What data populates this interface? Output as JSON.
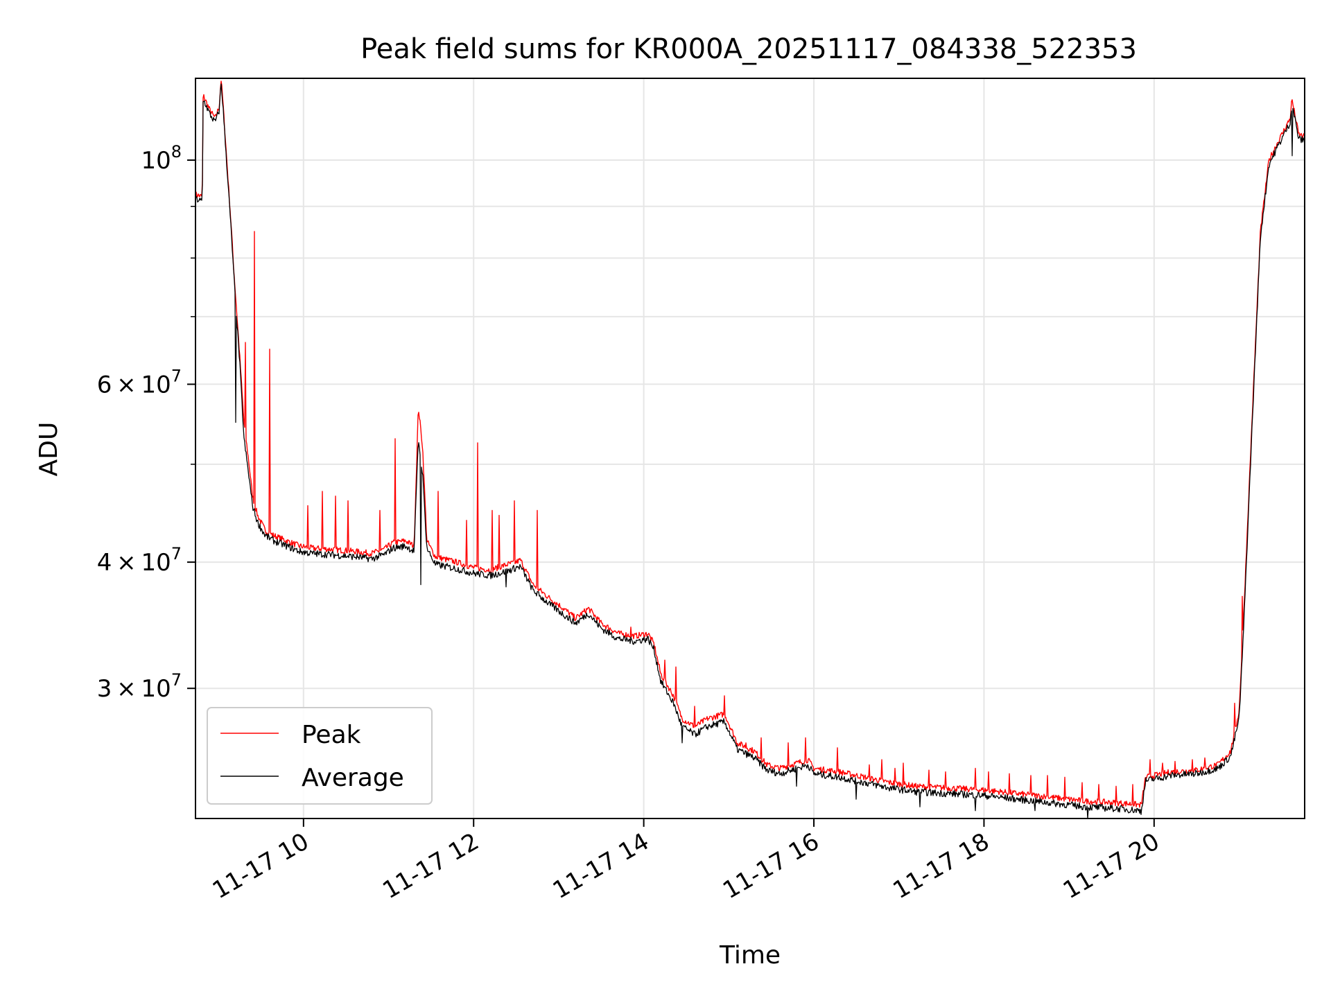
{
  "chart_data": {
    "type": "line",
    "title": "Peak field sums for KR000A_20251117_084338_522353",
    "xlabel": "Time",
    "ylabel": "ADU",
    "yscale": "log",
    "xlim": [
      8.73,
      21.77
    ],
    "ylim": [
      22300000,
      120500000
    ],
    "x_ticks": [
      {
        "x": 10,
        "label": "11-17 10"
      },
      {
        "x": 12,
        "label": "11-17 12"
      },
      {
        "x": 14,
        "label": "11-17 14"
      },
      {
        "x": 16,
        "label": "11-17 16"
      },
      {
        "x": 18,
        "label": "11-17 18"
      },
      {
        "x": 20,
        "label": "11-17 20"
      }
    ],
    "y_major_ticks": [
      {
        "value": 30000000,
        "base": "3",
        "exponent": "7"
      },
      {
        "value": 40000000,
        "base": "4",
        "exponent": "7"
      },
      {
        "value": 60000000,
        "base": "6",
        "exponent": "7"
      },
      {
        "value": 100000000,
        "base": "10",
        "exponent": "8"
      }
    ],
    "y_major_mult": "×",
    "y_minor_ticks": [
      50000000,
      70000000,
      80000000,
      90000000
    ],
    "grid": true,
    "legend_position": "lower-left",
    "series": [
      {
        "name": "Peak",
        "color": "#ff0000",
        "x": [
          8.73,
          8.81,
          8.82,
          8.9,
          8.96,
          9.01,
          9.03,
          9.05,
          9.15,
          9.18,
          9.25,
          9.3,
          9.36,
          9.4,
          9.46,
          9.55,
          9.65,
          9.8,
          9.95,
          10.1,
          10.3,
          10.6,
          10.8,
          10.95,
          11.05,
          11.2,
          11.3,
          11.35,
          11.4,
          11.45,
          11.55,
          11.8,
          12.0,
          12.2,
          12.4,
          12.5,
          12.55,
          12.7,
          12.9,
          13.0,
          13.2,
          13.35,
          13.5,
          13.7,
          13.9,
          14.05,
          14.12,
          14.2,
          14.35,
          14.45,
          14.6,
          14.75,
          14.95,
          15.1,
          15.3,
          15.45,
          15.6,
          15.8,
          15.93,
          16.0,
          16.3,
          16.6,
          16.9,
          17.2,
          17.6,
          18.0,
          18.4,
          18.8,
          19.2,
          19.6,
          19.85,
          19.9,
          20.2,
          20.5,
          20.75,
          20.9,
          21.0,
          21.05,
          21.15,
          21.25,
          21.35,
          21.45,
          21.6,
          21.62,
          21.7,
          21.77
        ],
        "y": [
          92500000,
          92000000,
          116000000,
          112000000,
          110000000,
          113000000,
          120500000,
          115000000,
          86000000,
          78000000,
          64000000,
          55000000,
          50000000,
          46500000,
          44500000,
          43000000,
          42500000,
          42000000,
          41500000,
          41300000,
          41200000,
          41000000,
          40800000,
          41200000,
          41800000,
          42000000,
          41500000,
          57000000,
          52000000,
          42000000,
          40500000,
          40000000,
          39500000,
          39300000,
          39800000,
          40000000,
          40200000,
          38000000,
          36800000,
          36300000,
          35200000,
          36000000,
          34800000,
          34000000,
          33800000,
          34000000,
          33200000,
          31000000,
          29500000,
          28000000,
          27500000,
          28000000,
          28300000,
          26500000,
          26000000,
          25200000,
          25000000,
          25300000,
          25500000,
          25000000,
          24800000,
          24500000,
          24200000,
          24000000,
          23900000,
          23800000,
          23600000,
          23400000,
          23200000,
          23100000,
          23000000,
          24500000,
          24800000,
          24900000,
          25200000,
          26000000,
          28500000,
          35000000,
          55000000,
          85000000,
          100000000,
          104000000,
          110000000,
          115000000,
          106000000,
          105500000
        ]
      },
      {
        "name": "Average",
        "color": "#000000",
        "x": [
          8.73,
          8.81,
          8.82,
          8.9,
          8.96,
          9.01,
          9.03,
          9.05,
          9.15,
          9.18,
          9.25,
          9.3,
          9.36,
          9.4,
          9.46,
          9.55,
          9.65,
          9.8,
          9.95,
          10.1,
          10.3,
          10.6,
          10.8,
          10.95,
          11.05,
          11.2,
          11.3,
          11.35,
          11.4,
          11.45,
          11.55,
          11.8,
          12.0,
          12.2,
          12.4,
          12.5,
          12.55,
          12.7,
          12.9,
          13.0,
          13.2,
          13.35,
          13.5,
          13.7,
          13.9,
          14.05,
          14.12,
          14.2,
          14.35,
          14.45,
          14.6,
          14.75,
          14.95,
          15.1,
          15.3,
          15.45,
          15.6,
          15.8,
          15.93,
          16.0,
          16.3,
          16.6,
          16.9,
          17.2,
          17.6,
          18.0,
          18.4,
          18.8,
          19.2,
          19.6,
          19.85,
          19.9,
          20.2,
          20.5,
          20.75,
          20.9,
          21.0,
          21.05,
          21.15,
          21.25,
          21.35,
          21.45,
          21.6,
          21.62,
          21.7,
          21.77
        ],
        "y": [
          91500000,
          91000000,
          115000000,
          111000000,
          109000000,
          112000000,
          119500000,
          114000000,
          85000000,
          77000000,
          63000000,
          53000000,
          48500000,
          45500000,
          43800000,
          42500000,
          42000000,
          41500000,
          41000000,
          40800000,
          40700000,
          40500000,
          40300000,
          40700000,
          41300000,
          41500000,
          41000000,
          53000000,
          49000000,
          41300000,
          39800000,
          39400000,
          39000000,
          38800000,
          39200000,
          39500000,
          39600000,
          37500000,
          36300000,
          35800000,
          34800000,
          35600000,
          34400000,
          33600000,
          33400000,
          33600000,
          32800000,
          30500000,
          29000000,
          27500000,
          27000000,
          27500000,
          27800000,
          26100000,
          25600000,
          24900000,
          24700000,
          25000000,
          25200000,
          24700000,
          24500000,
          24200000,
          23900000,
          23700000,
          23600000,
          23500000,
          23300000,
          23100000,
          22900000,
          22800000,
          22700000,
          24300000,
          24600000,
          24700000,
          25000000,
          25700000,
          28000000,
          34000000,
          54000000,
          84000000,
          99000000,
          103000000,
          109000000,
          114000000,
          105000000,
          104500000
        ]
      }
    ],
    "peak_spikes": [
      {
        "x": 9.32,
        "y": 66000000
      },
      {
        "x": 9.42,
        "y": 85000000
      },
      {
        "x": 9.6,
        "y": 65000000
      },
      {
        "x": 10.05,
        "y": 45500000
      },
      {
        "x": 10.22,
        "y": 47000000
      },
      {
        "x": 10.38,
        "y": 46500000
      },
      {
        "x": 10.52,
        "y": 46000000
      },
      {
        "x": 10.9,
        "y": 45000000
      },
      {
        "x": 11.08,
        "y": 53000000
      },
      {
        "x": 11.58,
        "y": 47000000
      },
      {
        "x": 11.92,
        "y": 44000000
      },
      {
        "x": 12.05,
        "y": 52500000
      },
      {
        "x": 12.22,
        "y": 45000000
      },
      {
        "x": 12.3,
        "y": 44500000
      },
      {
        "x": 12.48,
        "y": 46000000
      },
      {
        "x": 12.75,
        "y": 45000000
      },
      {
        "x": 13.85,
        "y": 34500000
      },
      {
        "x": 14.25,
        "y": 32000000
      },
      {
        "x": 14.38,
        "y": 31500000
      },
      {
        "x": 14.6,
        "y": 28800000
      },
      {
        "x": 14.95,
        "y": 29500000
      },
      {
        "x": 15.2,
        "y": 26500000
      },
      {
        "x": 15.38,
        "y": 26800000
      },
      {
        "x": 15.7,
        "y": 26500000
      },
      {
        "x": 15.9,
        "y": 26800000
      },
      {
        "x": 16.28,
        "y": 26200000
      },
      {
        "x": 16.65,
        "y": 25200000
      },
      {
        "x": 16.8,
        "y": 25500000
      },
      {
        "x": 16.95,
        "y": 25000000
      },
      {
        "x": 17.05,
        "y": 25300000
      },
      {
        "x": 17.35,
        "y": 24900000
      },
      {
        "x": 17.55,
        "y": 24800000
      },
      {
        "x": 17.9,
        "y": 25000000
      },
      {
        "x": 18.05,
        "y": 24800000
      },
      {
        "x": 18.3,
        "y": 24700000
      },
      {
        "x": 18.55,
        "y": 24600000
      },
      {
        "x": 18.75,
        "y": 24600000
      },
      {
        "x": 18.95,
        "y": 24500000
      },
      {
        "x": 19.15,
        "y": 24200000
      },
      {
        "x": 19.35,
        "y": 24100000
      },
      {
        "x": 19.55,
        "y": 24000000
      },
      {
        "x": 19.75,
        "y": 24100000
      },
      {
        "x": 19.95,
        "y": 25500000
      },
      {
        "x": 20.1,
        "y": 25300000
      },
      {
        "x": 20.25,
        "y": 25400000
      },
      {
        "x": 20.45,
        "y": 25500000
      },
      {
        "x": 20.6,
        "y": 25600000
      },
      {
        "x": 20.95,
        "y": 29000000
      },
      {
        "x": 21.04,
        "y": 37000000
      }
    ],
    "avg_dips": [
      {
        "x": 9.2,
        "y": 55000000
      },
      {
        "x": 11.38,
        "y": 38000000
      },
      {
        "x": 12.38,
        "y": 37800000
      },
      {
        "x": 14.45,
        "y": 26500000
      },
      {
        "x": 15.8,
        "y": 24000000
      },
      {
        "x": 16.5,
        "y": 23300000
      },
      {
        "x": 17.25,
        "y": 22900000
      },
      {
        "x": 17.9,
        "y": 22700000
      },
      {
        "x": 18.6,
        "y": 22700000
      },
      {
        "x": 19.22,
        "y": 22300000
      },
      {
        "x": 19.85,
        "y": 22500000
      },
      {
        "x": 21.62,
        "y": 101000000
      }
    ]
  }
}
